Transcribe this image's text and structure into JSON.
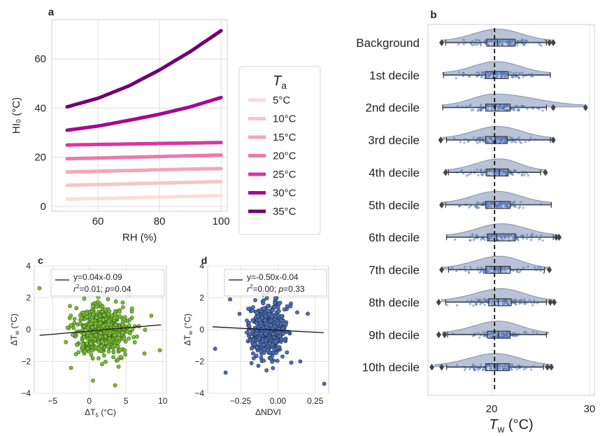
{
  "panels": {
    "a": {
      "letter": "a",
      "chart_data": {
        "type": "line",
        "xlabel": "RH (%)",
        "ylabel": "HI₀ (°C)",
        "xlim": [
          45,
          102
        ],
        "ylim": [
          -2,
          76
        ],
        "xticks": [
          60,
          80,
          100
        ],
        "yticks": [
          0,
          20,
          40,
          60
        ],
        "grid": true,
        "legend": {
          "title": "T",
          "title_sub": "a",
          "placement": "right"
        },
        "x": [
          50,
          60,
          70,
          80,
          90,
          100
        ],
        "series": [
          {
            "name": "5°C",
            "color": "#f9ddd8",
            "values": [
              3.0,
              3.2,
              3.5,
              3.8,
              4.1,
              4.4
            ]
          },
          {
            "name": "10°C",
            "color": "#f6c6c7",
            "values": [
              8.6,
              8.9,
              9.2,
              9.5,
              9.8,
              10.1
            ]
          },
          {
            "name": "15°C",
            "color": "#f2a6b8",
            "values": [
              14.0,
              14.3,
              14.6,
              14.9,
              15.2,
              15.4
            ]
          },
          {
            "name": "20°C",
            "color": "#ec79a9",
            "values": [
              19.4,
              19.7,
              20.0,
              20.3,
              20.6,
              20.9
            ]
          },
          {
            "name": "25°C",
            "color": "#d9379d",
            "values": [
              25.0,
              25.2,
              25.4,
              25.6,
              25.8,
              26.0
            ]
          },
          {
            "name": "30°C",
            "color": "#a5088e",
            "values": [
              31.0,
              32.7,
              35.0,
              37.5,
              40.5,
              44.3
            ]
          },
          {
            "name": "35°C",
            "color": "#6e0173",
            "values": [
              40.5,
              44.0,
              49.0,
              55.5,
              63.0,
              71.5
            ]
          }
        ]
      }
    },
    "b": {
      "letter": "b",
      "chart_data": {
        "type": "boxplot",
        "orientation": "horizontal",
        "xlabel": "T",
        "xlabel_sub": "w",
        "xlabel_unit": " (°C)",
        "xlim": [
          13.5,
          30.5
        ],
        "xticks": [
          20,
          30
        ],
        "reference_line": 20.3,
        "color": "#4f72b8",
        "violin_color": "#7f8fb5",
        "categories": [
          "Background",
          "1st decile",
          "2nd decile",
          "3rd decile",
          "4th decile",
          "5th decile",
          "6th decile",
          "7th decile",
          "8th decile",
          "9th decile",
          "10th decile"
        ],
        "boxes": [
          {
            "min": 15.3,
            "q1": 19.5,
            "median": 20.6,
            "q3": 22.4,
            "max": 25.6,
            "outliers": [
              14.9,
              25.9,
              26.3
            ],
            "vmin": 15.0,
            "vmax": 26.2,
            "peak": 20.6
          },
          {
            "min": 15.1,
            "q1": 19.4,
            "median": 20.2,
            "q3": 21.7,
            "max": 26.0,
            "outliers": [],
            "vmin": 15.0,
            "vmax": 26.0,
            "peak": 20.5
          },
          {
            "min": 15.0,
            "q1": 19.4,
            "median": 20.4,
            "q3": 21.9,
            "max": 25.6,
            "outliers": [
              26.3,
              29.6
            ],
            "vmin": 15.0,
            "vmax": 29.6,
            "peak": 20.3
          },
          {
            "min": 15.4,
            "q1": 19.4,
            "median": 20.4,
            "q3": 21.6,
            "max": 26.0,
            "outliers": [
              14.8,
              26.3
            ],
            "vmin": 15.0,
            "vmax": 26.2,
            "peak": 20.6
          },
          {
            "min": 15.6,
            "q1": 19.5,
            "median": 20.8,
            "q3": 21.7,
            "max": 25.0,
            "outliers": [
              15.3,
              25.5
            ],
            "vmin": 15.3,
            "vmax": 25.5,
            "peak": 20.8
          },
          {
            "min": 15.3,
            "q1": 19.4,
            "median": 20.3,
            "q3": 21.9,
            "max": 26.1,
            "outliers": [
              14.9
            ],
            "vmin": 14.9,
            "vmax": 26.1,
            "peak": 20.5
          },
          {
            "min": 15.4,
            "q1": 19.6,
            "median": 20.5,
            "q3": 22.4,
            "max": 26.3,
            "outliers": [
              26.6,
              26.9
            ],
            "vmin": 15.4,
            "vmax": 26.9,
            "peak": 21.0
          },
          {
            "min": 15.6,
            "q1": 19.4,
            "median": 20.9,
            "q3": 21.9,
            "max": 25.4,
            "outliers": [
              14.9,
              25.9
            ],
            "vmin": 15.0,
            "vmax": 25.8,
            "peak": 20.8
          },
          {
            "min": 15.3,
            "q1": 19.7,
            "median": 20.7,
            "q3": 22.0,
            "max": 25.6,
            "outliers": [
              14.6,
              26.0,
              26.4
            ],
            "vmin": 14.9,
            "vmax": 26.3,
            "peak": 21.0
          },
          {
            "min": 15.5,
            "q1": 19.6,
            "median": 20.7,
            "q3": 21.9,
            "max": 25.6,
            "outliers": [
              14.6,
              15.2
            ],
            "vmin": 15.0,
            "vmax": 25.8,
            "peak": 20.7
          },
          {
            "min": 15.4,
            "q1": 19.4,
            "median": 20.6,
            "q3": 21.8,
            "max": 25.3,
            "outliers": [
              13.9,
              14.9,
              25.7,
              26.1
            ],
            "vmin": 14.2,
            "vmax": 26.2,
            "peak": 20.4
          }
        ]
      }
    },
    "c": {
      "letter": "c",
      "chart_data": {
        "type": "scatter",
        "xlabel": "ΔT",
        "xlabel_sub": "5",
        "xlabel_unit": " (°C)",
        "ylabel": "ΔT",
        "ylabel_sub": "w",
        "ylabel_unit": " (°C)",
        "xlim": [
          -7.5,
          10.5
        ],
        "ylim": [
          -4,
          4
        ],
        "xticks": [
          -5,
          0,
          5,
          10
        ],
        "yticks": [
          -4,
          -2,
          0,
          2,
          4
        ],
        "grid": true,
        "color": "#7dbd3a",
        "edge": "#2e5a10",
        "point_count": 560,
        "center": [
          1.8,
          -0.05
        ],
        "spread": [
          1.9,
          0.85
        ],
        "extra_points": [
          [
            -6.8,
            2.6
          ],
          [
            9.6,
            -1.3
          ],
          [
            7.5,
            -1.5
          ],
          [
            3.5,
            -3.5
          ],
          [
            2.5,
            3.4
          ],
          [
            -2.5,
            -2.4
          ],
          [
            5.5,
            2.2
          ],
          [
            0.5,
            -3.2
          ]
        ],
        "fit": {
          "slope": 0.04,
          "intercept": -0.09
        },
        "legend": {
          "equation": "y=0.04x-0.09",
          "r2_label": "r",
          "r2_sup": "2",
          "r2_value": "=0.01; ",
          "p_label": "p",
          "p_value": "=0.04"
        }
      }
    },
    "d": {
      "letter": "d",
      "chart_data": {
        "type": "scatter",
        "xlabel": "ΔNDVI",
        "ylabel": "ΔT",
        "ylabel_sub": "w",
        "ylabel_unit": " (°C)",
        "xlim": [
          -0.47,
          0.34
        ],
        "ylim": [
          -4,
          4
        ],
        "xticks": [
          -0.25,
          0.0,
          0.25
        ],
        "xtick_labels": [
          "−0.25",
          "0.00",
          "0.25"
        ],
        "yticks": [
          -4,
          -2,
          0,
          2,
          4
        ],
        "grid": true,
        "color": "#4e72b0",
        "edge": "#1a2a50",
        "point_count": 540,
        "center": [
          -0.07,
          -0.05
        ],
        "spread": [
          0.065,
          0.85
        ],
        "extra_points": [
          [
            0.31,
            -3.4
          ],
          [
            -0.42,
            -1.2
          ],
          [
            -0.32,
            1.9
          ],
          [
            0.2,
            1.0
          ],
          [
            -0.35,
            -2.7
          ],
          [
            0.15,
            -2.0
          ],
          [
            -0.05,
            3.4
          ]
        ],
        "fit": {
          "slope": -0.5,
          "intercept": -0.04
        },
        "legend": {
          "equation": "y=-0.50x-0.04",
          "r2_label": "r",
          "r2_sup": "2",
          "r2_value": "=0.00; ",
          "p_label": "p",
          "p_value": "=0.33"
        }
      }
    }
  }
}
